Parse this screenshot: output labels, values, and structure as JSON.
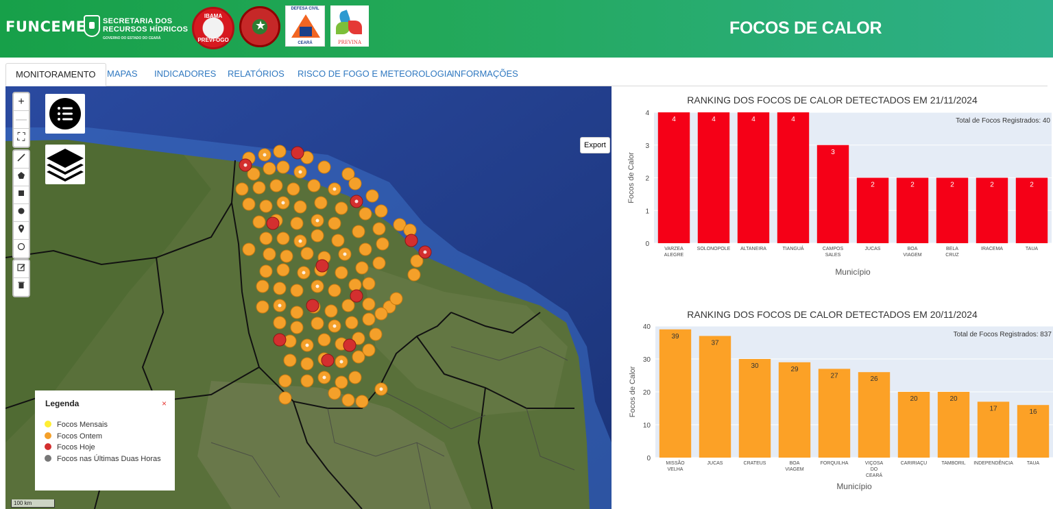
{
  "header": {
    "brand": "FUNCEME",
    "srh_line1": "SECRETARIA DOS",
    "srh_line2": "RECURSOS HÍDRICOS",
    "srh_line3": "GOVERNO DO ESTADO DO CEARÁ",
    "ibama_top": "IBAMA",
    "ibama_bottom": "PREVFOGO",
    "defesa_top": "DEFESA CIVIL",
    "defesa_bottom": "CEARÁ",
    "previna": "PREVINA",
    "title": "FOCOS DE CALOR",
    "colors": {
      "bar_start": "#17a049",
      "bar_end": "#2eb08a"
    }
  },
  "tabs": [
    {
      "label": "MONITORAMENTO",
      "active": true
    },
    {
      "label": "MAPAS",
      "active": false
    },
    {
      "label": "INDICADORES",
      "active": false
    },
    {
      "label": "RELATÓRIOS",
      "active": false
    },
    {
      "label": "RISCO DE FOGO E METEOROLOGIA",
      "active": false
    },
    {
      "label": "INFORMAÇÕES",
      "active": false
    }
  ],
  "map": {
    "zoom_in": "+",
    "zoom_out": "—",
    "fullscreen": "⛶",
    "draw_tools": [
      "polyline-icon",
      "polygon-icon",
      "rectangle-icon",
      "circle-icon",
      "marker-icon",
      "circlemarker-icon"
    ],
    "edit_tools": [
      "edit-icon",
      "delete-icon"
    ],
    "export_label": "Export",
    "scale_label": "100 km",
    "legend": {
      "title": "Legenda",
      "close": "×",
      "items": [
        {
          "label": "Focos Mensais",
          "color": "#ffee33"
        },
        {
          "label": "Focos Ontem",
          "color": "#f4a02a"
        },
        {
          "label": "Focos Hoje",
          "color": "#d32f2f"
        },
        {
          "label": "Focos nas Últimas Duas Horas",
          "color": "#777777"
        }
      ]
    }
  },
  "chart_data": [
    {
      "type": "bar",
      "title": "RANKING DOS FOCOS DE CALOR DETECTADOS EM 21/11/2024",
      "annotation": "Total de Focos Registrados: 40",
      "xlabel": "Município",
      "ylabel": "Focos de Calor",
      "ylim": [
        0,
        4
      ],
      "yticks": [
        0,
        1,
        2,
        3,
        4
      ],
      "color": "#f50017",
      "categories": [
        "VARZEA ALEGRE",
        "SOLONOPOLE",
        "ALTANEIRA",
        "TIANGUÁ",
        "CAMPOS SALES",
        "JUCAS",
        "BOA VIAGEM",
        "BELA CRUZ",
        "IRACEMA",
        "TAUA"
      ],
      "category_lines": [
        [
          "VARZEA",
          "ALEGRE"
        ],
        [
          "SOLONOPOLE"
        ],
        [
          "ALTANEIRA"
        ],
        [
          "TIANGUÁ"
        ],
        [
          "CAMPOS",
          "SALES"
        ],
        [
          "JUCAS"
        ],
        [
          "BOA",
          "VIAGEM"
        ],
        [
          "BELA",
          "CRUZ"
        ],
        [
          "IRACEMA"
        ],
        [
          "TAUA"
        ]
      ],
      "values": [
        4,
        4,
        4,
        4,
        3,
        2,
        2,
        2,
        2,
        2
      ],
      "labels_inside": true
    },
    {
      "type": "bar",
      "title": "RANKING DOS FOCOS DE CALOR DETECTADOS EM 20/11/2024",
      "annotation": "Total de Focos Registrados: 837",
      "xlabel": "Município",
      "ylabel": "Focos de Calor",
      "ylim": [
        0,
        40
      ],
      "yticks": [
        0,
        10,
        20,
        30,
        40
      ],
      "color": "#fca126",
      "categories": [
        "MISSÃO VELHA",
        "JUCAS",
        "CRATEUS",
        "BOA VIAGEM",
        "FORQUILHA",
        "VIÇOSA DO CEARÁ",
        "CARIRIAÇU",
        "TAMBORIL",
        "INDEPENDÊNCIA",
        "TAUA"
      ],
      "category_lines": [
        [
          "MISSÃO",
          "VELHA"
        ],
        [
          "JUCAS"
        ],
        [
          "CRATEUS"
        ],
        [
          "BOA",
          "VIAGEM"
        ],
        [
          "FORQUILHA"
        ],
        [
          "VIÇOSA",
          "DO",
          "CEARÁ"
        ],
        [
          "CARIRIAÇU"
        ],
        [
          "TAMBORIL"
        ],
        [
          "INDEPENDÊNCIA"
        ],
        [
          "TAUA"
        ]
      ],
      "values": [
        39,
        37,
        30,
        29,
        27,
        26,
        20,
        20,
        17,
        16
      ],
      "labels_inside": true
    }
  ]
}
